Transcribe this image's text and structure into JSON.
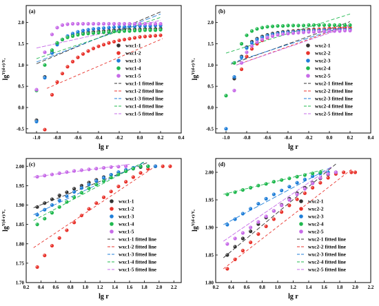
{
  "figure": {
    "palette": [
      "#333333",
      "#e8332c",
      "#1f7ed8",
      "#1fb84e",
      "#c76be8"
    ]
  },
  "chart_data": [
    {
      "panel": "(a)",
      "type": "scatter",
      "xlabel": "lg r",
      "ylabel": "lg",
      "ylabel_sup": "Y(d-r)/Y₀",
      "xlim": [
        -1.1,
        0.4
      ],
      "ylim": [
        -0.6,
        2.4
      ],
      "xticks": [
        -1.0,
        -0.8,
        -0.6,
        -0.4,
        -0.2,
        0.0,
        0.2,
        0.4
      ],
      "yticks": [
        -0.5,
        0.0,
        0.5,
        1.0,
        1.5,
        2.0
      ],
      "xtick_labels": [
        "-1.0",
        "-0.8",
        "-0.6",
        "-0.4",
        "-0.2",
        "0.0",
        "0.2",
        "0.4"
      ],
      "ytick_labels": [
        "-0.5",
        "0.0",
        "0.5",
        "1.0",
        "1.5",
        "2.0"
      ],
      "legend_position": "right",
      "x": [
        -1.0,
        -0.92,
        -0.85,
        -0.8,
        -0.75,
        -0.7,
        -0.65,
        -0.6,
        -0.55,
        -0.5,
        -0.45,
        -0.4,
        -0.35,
        -0.3,
        -0.25,
        -0.2,
        -0.15,
        -0.1,
        -0.05,
        0.0,
        0.05,
        0.1,
        0.15,
        0.2
      ],
      "series": [
        {
          "name": "wxc1-1",
          "values": [
            -0.3,
            0.72,
            1.3,
            1.5,
            1.6,
            1.66,
            1.7,
            1.73,
            1.75,
            1.77,
            1.78,
            1.79,
            1.8,
            1.81,
            1.82,
            1.82,
            1.83,
            1.83,
            1.84,
            1.84,
            1.85,
            1.85,
            1.85,
            1.86
          ]
        },
        {
          "name": "wxc1-2",
          "values": [
            null,
            -0.52,
            0.3,
            0.6,
            0.8,
            0.96,
            1.08,
            1.18,
            1.26,
            1.33,
            1.39,
            1.44,
            1.48,
            1.52,
            1.55,
            1.58,
            1.6,
            1.62,
            1.64,
            1.66,
            1.67,
            1.68,
            1.69,
            1.7
          ]
        },
        {
          "name": "wxc1-3",
          "values": [
            -0.33,
            0.7,
            1.28,
            1.48,
            1.6,
            1.68,
            1.74,
            1.78,
            1.81,
            1.83,
            1.85,
            1.86,
            1.87,
            1.88,
            1.89,
            1.9,
            1.9,
            1.91,
            1.91,
            1.92,
            1.92,
            1.92,
            1.93,
            1.93
          ]
        },
        {
          "name": "wxc1-4",
          "values": [
            0.4,
            1.0,
            1.35,
            1.52,
            1.6,
            1.65,
            1.68,
            1.71,
            1.73,
            1.74,
            1.75,
            1.76,
            1.77,
            1.78,
            1.79,
            1.79,
            1.8,
            1.8,
            1.81,
            1.81,
            1.82,
            1.82,
            1.82,
            1.83
          ]
        },
        {
          "name": "wxc1-5",
          "values": [
            0.42,
            1.3,
            1.72,
            1.88,
            1.94,
            1.96,
            1.97,
            1.97,
            1.97,
            1.97,
            1.97,
            1.97,
            1.97,
            1.97,
            1.97,
            1.97,
            1.97,
            1.97,
            1.97,
            1.97,
            1.97,
            1.97,
            1.97,
            1.97
          ]
        }
      ],
      "fits": [
        {
          "name": "wxc1-1 fitted line",
          "line": [
            [
              -1.0,
              1.03
            ],
            [
              0.2,
              2.25
            ]
          ]
        },
        {
          "name": "wxc1-2 fitted line",
          "line": [
            [
              -0.9,
              0.45
            ],
            [
              0.22,
              1.62
            ]
          ]
        },
        {
          "name": "wxc1-3 fitted line",
          "line": [
            [
              -1.0,
              1.07
            ],
            [
              0.2,
              2.2
            ]
          ]
        },
        {
          "name": "wxc1-4 fitted line",
          "line": [
            [
              -1.0,
              1.15
            ],
            [
              0.2,
              2.12
            ]
          ]
        },
        {
          "name": "wxc1-5 fitted line",
          "line": [
            [
              -1.0,
              1.4
            ],
            [
              0.2,
              2.05
            ]
          ]
        }
      ]
    },
    {
      "panel": "(b)",
      "type": "scatter",
      "xlabel": "lg r",
      "ylabel": "lg",
      "ylabel_sup": "Y(d-r)/Y₀",
      "xlim": [
        -1.1,
        0.4
      ],
      "ylim": [
        -0.6,
        2.4
      ],
      "xticks": [
        -1.0,
        -0.8,
        -0.6,
        -0.4,
        -0.2,
        0.0,
        0.2,
        0.4
      ],
      "yticks": [
        -0.5,
        0.0,
        0.5,
        1.0,
        1.5,
        2.0
      ],
      "xtick_labels": [
        "-1.0",
        "-0.8",
        "-0.6",
        "-0.4",
        "-0.2",
        "0.0",
        "0.2",
        "0.4"
      ],
      "ytick_labels": [
        "-0.5",
        "0.0",
        "0.5",
        "1.0",
        "1.5",
        "2.0"
      ],
      "legend_position": "right",
      "x": [
        -1.0,
        -0.92,
        -0.85,
        -0.8,
        -0.75,
        -0.7,
        -0.65,
        -0.6,
        -0.55,
        -0.5,
        -0.45,
        -0.4,
        -0.35,
        -0.3,
        -0.25,
        -0.2,
        -0.15,
        -0.1,
        -0.05,
        0.0,
        0.05,
        0.1,
        0.15,
        0.2
      ],
      "series": [
        {
          "name": "wxc2-1",
          "values": [
            null,
            0.68,
            1.2,
            1.42,
            1.55,
            1.62,
            1.67,
            1.71,
            1.74,
            1.76,
            1.78,
            1.79,
            1.8,
            1.81,
            1.82,
            1.83,
            1.84,
            1.84,
            1.85,
            1.86,
            1.86,
            1.87,
            1.87,
            1.88
          ]
        },
        {
          "name": "wxc2-2",
          "values": [
            null,
            null,
            0.9,
            1.2,
            1.38,
            1.5,
            1.58,
            1.64,
            1.69,
            1.72,
            1.75,
            1.77,
            1.79,
            1.8,
            1.81,
            1.82,
            1.83,
            1.84,
            1.85,
            1.86,
            1.86,
            1.87,
            1.88,
            1.88
          ]
        },
        {
          "name": "wxc2-3",
          "values": [
            -0.5,
            0.72,
            1.18,
            1.4,
            1.52,
            1.6,
            1.65,
            1.69,
            1.72,
            1.74,
            1.76,
            1.77,
            1.78,
            1.79,
            1.8,
            1.8,
            1.81,
            1.81,
            1.82,
            1.82,
            1.82,
            1.83,
            1.83,
            1.83
          ]
        },
        {
          "name": "wxc2-4",
          "values": [
            0.28,
            1.05,
            1.5,
            1.7,
            1.8,
            1.85,
            1.88,
            1.9,
            1.91,
            1.92,
            1.92,
            1.93,
            1.93,
            1.93,
            1.93,
            1.94,
            1.94,
            1.94,
            1.94,
            1.94,
            1.94,
            1.94,
            1.94,
            1.94
          ]
        },
        {
          "name": "wxc2-5",
          "values": [
            null,
            0.4,
            1.05,
            1.3,
            1.45,
            1.54,
            1.6,
            1.65,
            1.68,
            1.71,
            1.73,
            1.74,
            1.75,
            1.76,
            1.77,
            1.78,
            1.78,
            1.79,
            1.79,
            1.8,
            1.8,
            1.8,
            1.81,
            1.81
          ]
        }
      ],
      "fits": [
        {
          "name": "wxc2-1 fitted line",
          "line": [
            [
              -0.95,
              1.02
            ],
            [
              0.2,
              2.02
            ]
          ]
        },
        {
          "name": "wxc2-2 fitted line",
          "line": [
            [
              -0.9,
              1.0
            ],
            [
              0.2,
              1.95
            ]
          ]
        },
        {
          "name": "wxc2-3 fitted line",
          "line": [
            [
              -0.95,
              1.05
            ],
            [
              0.2,
              1.95
            ]
          ]
        },
        {
          "name": "wxc2-4 fitted line",
          "line": [
            [
              -1.0,
              1.28
            ],
            [
              0.2,
              2.2
            ]
          ]
        },
        {
          "name": "wxc2-5 fitted line",
          "line": [
            [
              -0.9,
              1.0
            ],
            [
              0.2,
              1.92
            ]
          ]
        }
      ]
    },
    {
      "panel": "(c)",
      "type": "scatter",
      "xlabel": "lg r",
      "ylabel": "lg",
      "ylabel_sup": "Y(d-r)/Y₀",
      "xlim": [
        0.2,
        2.3
      ],
      "ylim": [
        1.7,
        2.02
      ],
      "xticks": [
        0.2,
        0.4,
        0.6,
        0.8,
        1.0,
        1.2,
        1.4,
        1.6,
        1.8,
        2.0,
        2.2
      ],
      "yticks": [
        1.7,
        1.75,
        1.8,
        1.85,
        1.9,
        1.95,
        2.0
      ],
      "xtick_labels": [
        "0.2",
        "0.4",
        "0.6",
        "0.8",
        "1.0",
        "1.2",
        "1.4",
        "1.6",
        "1.8",
        "2.0",
        "2.2"
      ],
      "ytick_labels": [
        "1.70",
        "1.75",
        "1.80",
        "1.85",
        "1.90",
        "1.95",
        "2.00"
      ],
      "legend_position": "bottom-right",
      "x": [
        0.35,
        0.45,
        0.55,
        0.65,
        0.75,
        0.85,
        0.95,
        1.05,
        1.15,
        1.25,
        1.35,
        1.45,
        1.55,
        1.65,
        1.75,
        1.85,
        1.95,
        2.05,
        2.15
      ],
      "series": [
        {
          "name": "wxc1-1",
          "values": [
            1.895,
            1.905,
            1.915,
            1.925,
            1.933,
            1.942,
            1.95,
            1.958,
            1.965,
            1.972,
            1.978,
            1.984,
            1.989,
            1.994,
            1.998,
            2.0,
            2.0,
            null,
            null
          ]
        },
        {
          "name": "wxc1-2",
          "values": [
            1.74,
            1.77,
            1.795,
            1.815,
            1.835,
            1.855,
            1.873,
            1.89,
            1.905,
            1.92,
            1.935,
            1.948,
            1.96,
            1.972,
            1.983,
            1.993,
            2.0,
            2.0,
            2.0
          ]
        },
        {
          "name": "wxc1-3",
          "values": [
            1.875,
            1.888,
            1.9,
            1.912,
            1.923,
            1.934,
            1.944,
            1.953,
            1.962,
            1.97,
            1.978,
            1.985,
            1.991,
            1.996,
            2.0,
            2.0,
            2.0,
            null,
            null
          ]
        },
        {
          "name": "wxc1-4",
          "values": [
            1.85,
            1.865,
            1.88,
            1.895,
            1.908,
            1.92,
            1.932,
            1.943,
            1.953,
            1.962,
            1.971,
            1.979,
            1.987,
            1.994,
            2.0,
            2.0,
            null,
            null,
            null
          ]
        },
        {
          "name": "wxc1-5",
          "values": [
            1.973,
            1.976,
            1.979,
            1.982,
            1.985,
            1.988,
            1.99,
            1.992,
            1.994,
            1.996,
            1.998,
            1.999,
            2.0,
            null,
            null,
            null,
            null,
            null,
            null
          ]
        }
      ],
      "fits": [
        {
          "name": "wxc1-1 fitted line",
          "line": [
            [
              0.3,
              1.893
            ],
            [
              1.85,
              2.01
            ]
          ]
        },
        {
          "name": "wxc1-2 fitted line",
          "line": [
            [
              0.3,
              1.79
            ],
            [
              1.95,
              2.0
            ]
          ]
        },
        {
          "name": "wxc1-3 fitted line",
          "line": [
            [
              0.3,
              1.875
            ],
            [
              1.8,
              2.01
            ]
          ]
        },
        {
          "name": "wxc1-4 fitted line",
          "line": [
            [
              0.3,
              1.86
            ],
            [
              1.8,
              2.012
            ]
          ]
        },
        {
          "name": "wxc1-5 fitted line",
          "line": [
            [
              0.3,
              1.972
            ],
            [
              1.6,
              2.005
            ]
          ]
        }
      ]
    },
    {
      "panel": "(d)",
      "type": "scatter",
      "xlabel": "lg r",
      "ylabel": "lg",
      "ylabel_sup": "Y(d-r)/Y₀",
      "xlim": [
        0.2,
        2.2
      ],
      "ylim": [
        1.8,
        2.025
      ],
      "xticks": [
        0.2,
        0.4,
        0.6,
        0.8,
        1.0,
        1.2,
        1.4,
        1.6,
        1.8,
        2.0,
        2.2
      ],
      "yticks": [
        1.8,
        1.85,
        1.9,
        1.95,
        2.0
      ],
      "xtick_labels": [
        "0.2",
        "0.4",
        "0.6",
        "0.8",
        "1.0",
        "1.2",
        "1.4",
        "1.6",
        "1.8",
        "2.0",
        "2.2"
      ],
      "ytick_labels": [
        "1.80",
        "1.85",
        "1.90",
        "1.95",
        "2.00"
      ],
      "legend_position": "bottom-right",
      "x": [
        0.35,
        0.45,
        0.55,
        0.65,
        0.75,
        0.85,
        0.95,
        1.05,
        1.15,
        1.25,
        1.35,
        1.45,
        1.55,
        1.65,
        1.75,
        1.85,
        1.95,
        2.0
      ],
      "series": [
        {
          "name": "wxc2-1",
          "values": [
            1.85,
            1.865,
            1.88,
            1.893,
            1.906,
            1.918,
            1.93,
            1.941,
            1.952,
            1.962,
            1.972,
            1.981,
            1.989,
            1.996,
            2.0,
            null,
            null,
            null
          ]
        },
        {
          "name": "wxc2-2",
          "values": [
            1.825,
            1.842,
            1.858,
            1.873,
            1.888,
            1.902,
            1.915,
            1.928,
            1.94,
            1.951,
            1.962,
            1.972,
            1.981,
            1.99,
            1.997,
            2.0,
            2.0,
            2.0
          ]
        },
        {
          "name": "wxc2-3",
          "values": [
            1.905,
            1.915,
            1.925,
            1.934,
            1.943,
            1.952,
            1.96,
            1.967,
            1.974,
            1.981,
            1.987,
            1.993,
            1.998,
            2.0,
            null,
            null,
            null,
            null
          ]
        },
        {
          "name": "wxc2-4",
          "values": [
            1.96,
            1.964,
            1.968,
            1.972,
            1.976,
            1.979,
            1.983,
            1.986,
            1.989,
            1.992,
            1.995,
            1.998,
            2.0,
            null,
            null,
            null,
            null,
            null
          ]
        },
        {
          "name": "wxc2-5",
          "values": [
            1.87,
            1.88,
            1.89,
            1.9,
            1.91,
            1.92,
            1.93,
            1.94,
            1.95,
            1.96,
            1.97,
            1.98,
            1.99,
            1.997,
            2.0,
            null,
            null,
            null
          ]
        }
      ],
      "fits": [
        {
          "name": "wxc2-1 fitted line",
          "line": [
            [
              0.3,
              1.845
            ],
            [
              1.75,
              2.015
            ]
          ]
        },
        {
          "name": "wxc2-2 fitted line",
          "line": [
            [
              0.3,
              1.825
            ],
            [
              1.95,
              2.005
            ]
          ]
        },
        {
          "name": "wxc2-3 fitted line",
          "line": [
            [
              0.3,
              1.905
            ],
            [
              1.7,
              2.01
            ]
          ]
        },
        {
          "name": "wxc2-4 fitted line",
          "line": [
            [
              0.3,
              1.96
            ],
            [
              1.6,
              2.005
            ]
          ]
        },
        {
          "name": "wxc2-5 fitted line",
          "line": [
            [
              0.3,
              1.875
            ],
            [
              1.7,
              2.01
            ]
          ]
        }
      ]
    }
  ]
}
